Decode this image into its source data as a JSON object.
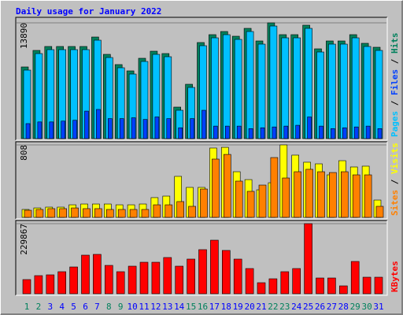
{
  "title": "Daily usage for January 2022",
  "legend_separator": "/",
  "chart_data": [
    {
      "type": "bar",
      "ylim": [
        0,
        13890
      ],
      "yticks": [
        13890
      ],
      "series": [
        {
          "name": "Pages",
          "color": "#00c0ff",
          "values": [
            8219,
            10203,
            10675,
            10675,
            10675,
            10675,
            11809,
            9730,
            8502,
            7746,
            9258,
            10108,
            9825,
            3400,
            6140,
            11148,
            12093,
            12471,
            11904,
            12849,
            11337,
            13510,
            12093,
            12093,
            13227,
            10392,
            11337,
            11337,
            12093,
            11054,
            10581
          ]
        },
        {
          "name": "Files",
          "color": "#0040ff",
          "values": [
            1800,
            2000,
            2000,
            2100,
            2200,
            3300,
            3500,
            2400,
            2400,
            2500,
            2300,
            2600,
            2400,
            1300,
            2400,
            3400,
            1500,
            1500,
            1500,
            1200,
            1300,
            1400,
            1500,
            1600,
            2600,
            1500,
            1200,
            1300,
            1400,
            1500,
            1200
          ]
        },
        {
          "name": "Hits",
          "color": "#00805c",
          "values": [
            8599,
            10583,
            11055,
            11055,
            11055,
            11055,
            12189,
            10110,
            8882,
            8126,
            9638,
            10488,
            10205,
            3780,
            6520,
            11528,
            12473,
            12851,
            12284,
            13229,
            11717,
            13890,
            12473,
            12473,
            13607,
            10772,
            11717,
            11717,
            12473,
            11434,
            10961
          ]
        }
      ]
    },
    {
      "type": "bar",
      "ylim": [
        0,
        808
      ],
      "yticks": [
        808
      ],
      "series": [
        {
          "name": "Sites",
          "color": "#ff8000",
          "values": [
            79,
            88,
            97,
            97,
            105,
            97,
            97,
            88,
            88,
            88,
            88,
            140,
            140,
            176,
            123,
            316,
            650,
            702,
            404,
            290,
            360,
            667,
            439,
            509,
            536,
            509,
            500,
            509,
            474,
            474,
            123
          ]
        },
        {
          "name": "Visits",
          "color": "#ffff00",
          "values": [
            88,
            105,
            114,
            114,
            140,
            149,
            149,
            149,
            140,
            140,
            149,
            220,
            237,
            457,
            334,
            334,
            773,
            781,
            509,
            421,
            307,
            386,
            808,
            694,
            615,
            597,
            474,
            632,
            562,
            571,
            193
          ]
        }
      ]
    },
    {
      "type": "bar",
      "ylim": [
        0,
        229867
      ],
      "yticks": [
        229867
      ],
      "categories": [
        "1",
        "2",
        "3",
        "4",
        "5",
        "6",
        "7",
        "8",
        "9",
        "10",
        "11",
        "12",
        "13",
        "14",
        "15",
        "16",
        "17",
        "18",
        "19",
        "20",
        "21",
        "22",
        "23",
        "24",
        "25",
        "26",
        "27",
        "28",
        "29",
        "30",
        "31"
      ],
      "category_colors": [
        "#00805c",
        "#00805c",
        "#0000ff",
        "#0000ff",
        "#0000ff",
        "#0000ff",
        "#0000ff",
        "#00805c",
        "#00805c",
        "#0000ff",
        "#0000ff",
        "#0000ff",
        "#0000ff",
        "#0000ff",
        "#00805c",
        "#00805c",
        "#0000ff",
        "#0000ff",
        "#0000ff",
        "#0000ff",
        "#0000ff",
        "#00805c",
        "#00805c",
        "#0000ff",
        "#0000ff",
        "#0000ff",
        "#0000ff",
        "#0000ff",
        "#00805c",
        "#00805c",
        "#0000ff"
      ],
      "series": [
        {
          "name": "KBytes",
          "color": "#ff0000",
          "values": [
            46494,
            59409,
            62000,
            72324,
            87822,
            126567,
            129150,
            92988,
            72324,
            90405,
            103320,
            103320,
            118818,
            90405,
            113652,
            144648,
            175644,
            142065,
            113652,
            82656,
            36162,
            49077,
            72324,
            82656,
            229867,
            51660,
            51660,
            25830,
            105903,
            54243,
            54243
          ]
        }
      ]
    }
  ]
}
